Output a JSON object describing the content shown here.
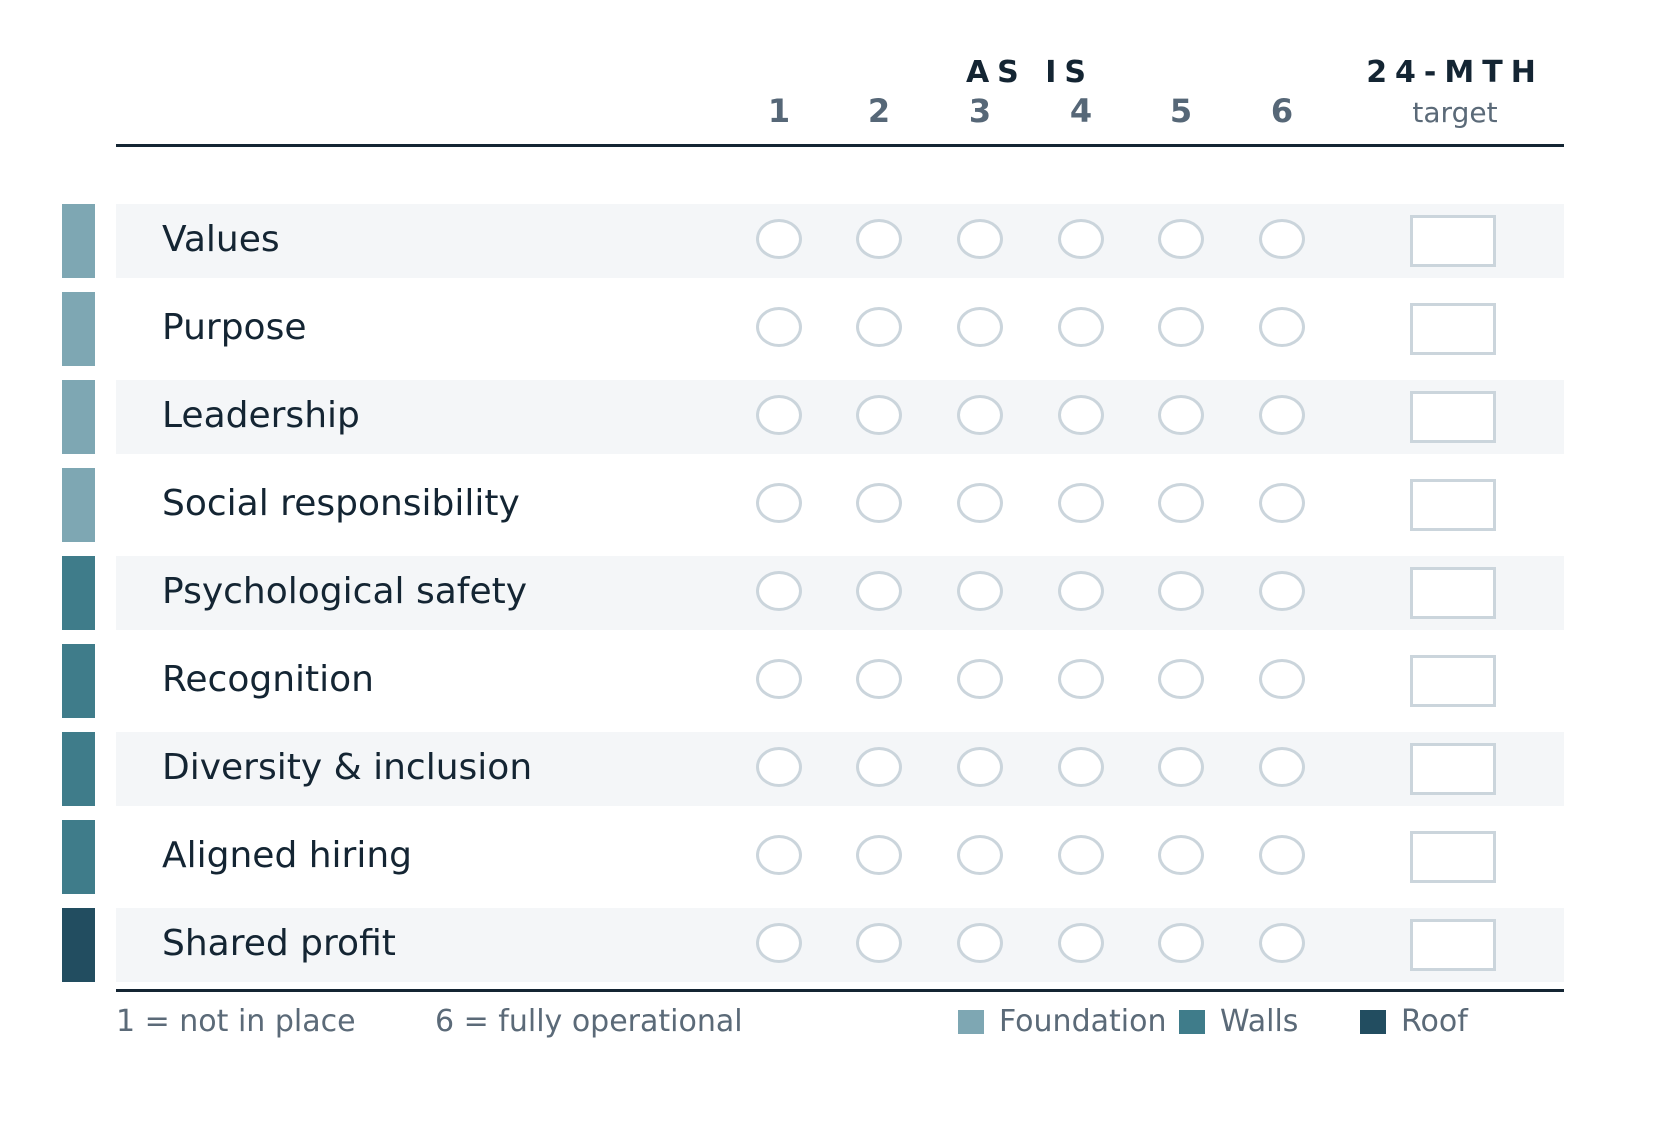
{
  "header": {
    "asis_title": "AS IS",
    "target_title": "24-MTH",
    "target_subtitle": "target",
    "scale": [
      "1",
      "2",
      "3",
      "4",
      "5",
      "6"
    ]
  },
  "rows": [
    {
      "label": "Values",
      "category": "Foundation"
    },
    {
      "label": "Purpose",
      "category": "Foundation"
    },
    {
      "label": "Leadership",
      "category": "Foundation"
    },
    {
      "label": "Social responsibility",
      "category": "Foundation"
    },
    {
      "label": "Psychological safety",
      "category": "Walls"
    },
    {
      "label": "Recognition",
      "category": "Walls"
    },
    {
      "label": "Diversity & inclusion",
      "category": "Walls"
    },
    {
      "label": "Aligned hiring",
      "category": "Walls"
    },
    {
      "label": "Shared profit",
      "category": "Roof"
    }
  ],
  "footer": {
    "scale_low": "1 = not in place",
    "scale_high": "6 = fully operational",
    "legend": [
      {
        "label": "Foundation",
        "color": "#7ea7b3"
      },
      {
        "label": "Walls",
        "color": "#3f7c8a"
      },
      {
        "label": "Roof",
        "color": "#224d60"
      }
    ]
  },
  "colors": {
    "foundation": "#7ea7b3",
    "walls": "#3f7c8a",
    "roof": "#224d60",
    "rule": "#142533",
    "control_border": "#cbd5dc",
    "shade": "#f4f6f8"
  }
}
